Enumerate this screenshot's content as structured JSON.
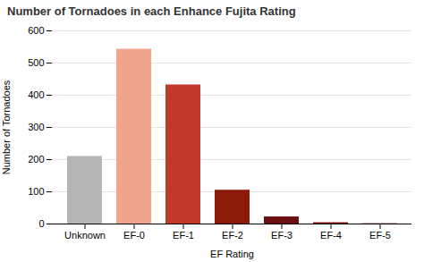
{
  "chart_data": {
    "type": "bar",
    "title": "Number of Tornadoes in each Enhance Fujita Rating",
    "xlabel": "EF Rating",
    "ylabel": "Number of Tornadoes",
    "categories": [
      "Unknown",
      "EF-0",
      "EF-1",
      "EF-2",
      "EF-3",
      "EF-4",
      "EF-5"
    ],
    "values": [
      210,
      543,
      432,
      105,
      22,
      4,
      1
    ],
    "colors": [
      "#b5b5b5",
      "#f2a58e",
      "#c0392b",
      "#8b1a0a",
      "#6b1010",
      "#7a1010",
      "#7a1010"
    ],
    "ylim": [
      0,
      600
    ],
    "yticks": [
      0,
      100,
      200,
      300,
      400,
      500,
      600
    ],
    "grid": true
  }
}
